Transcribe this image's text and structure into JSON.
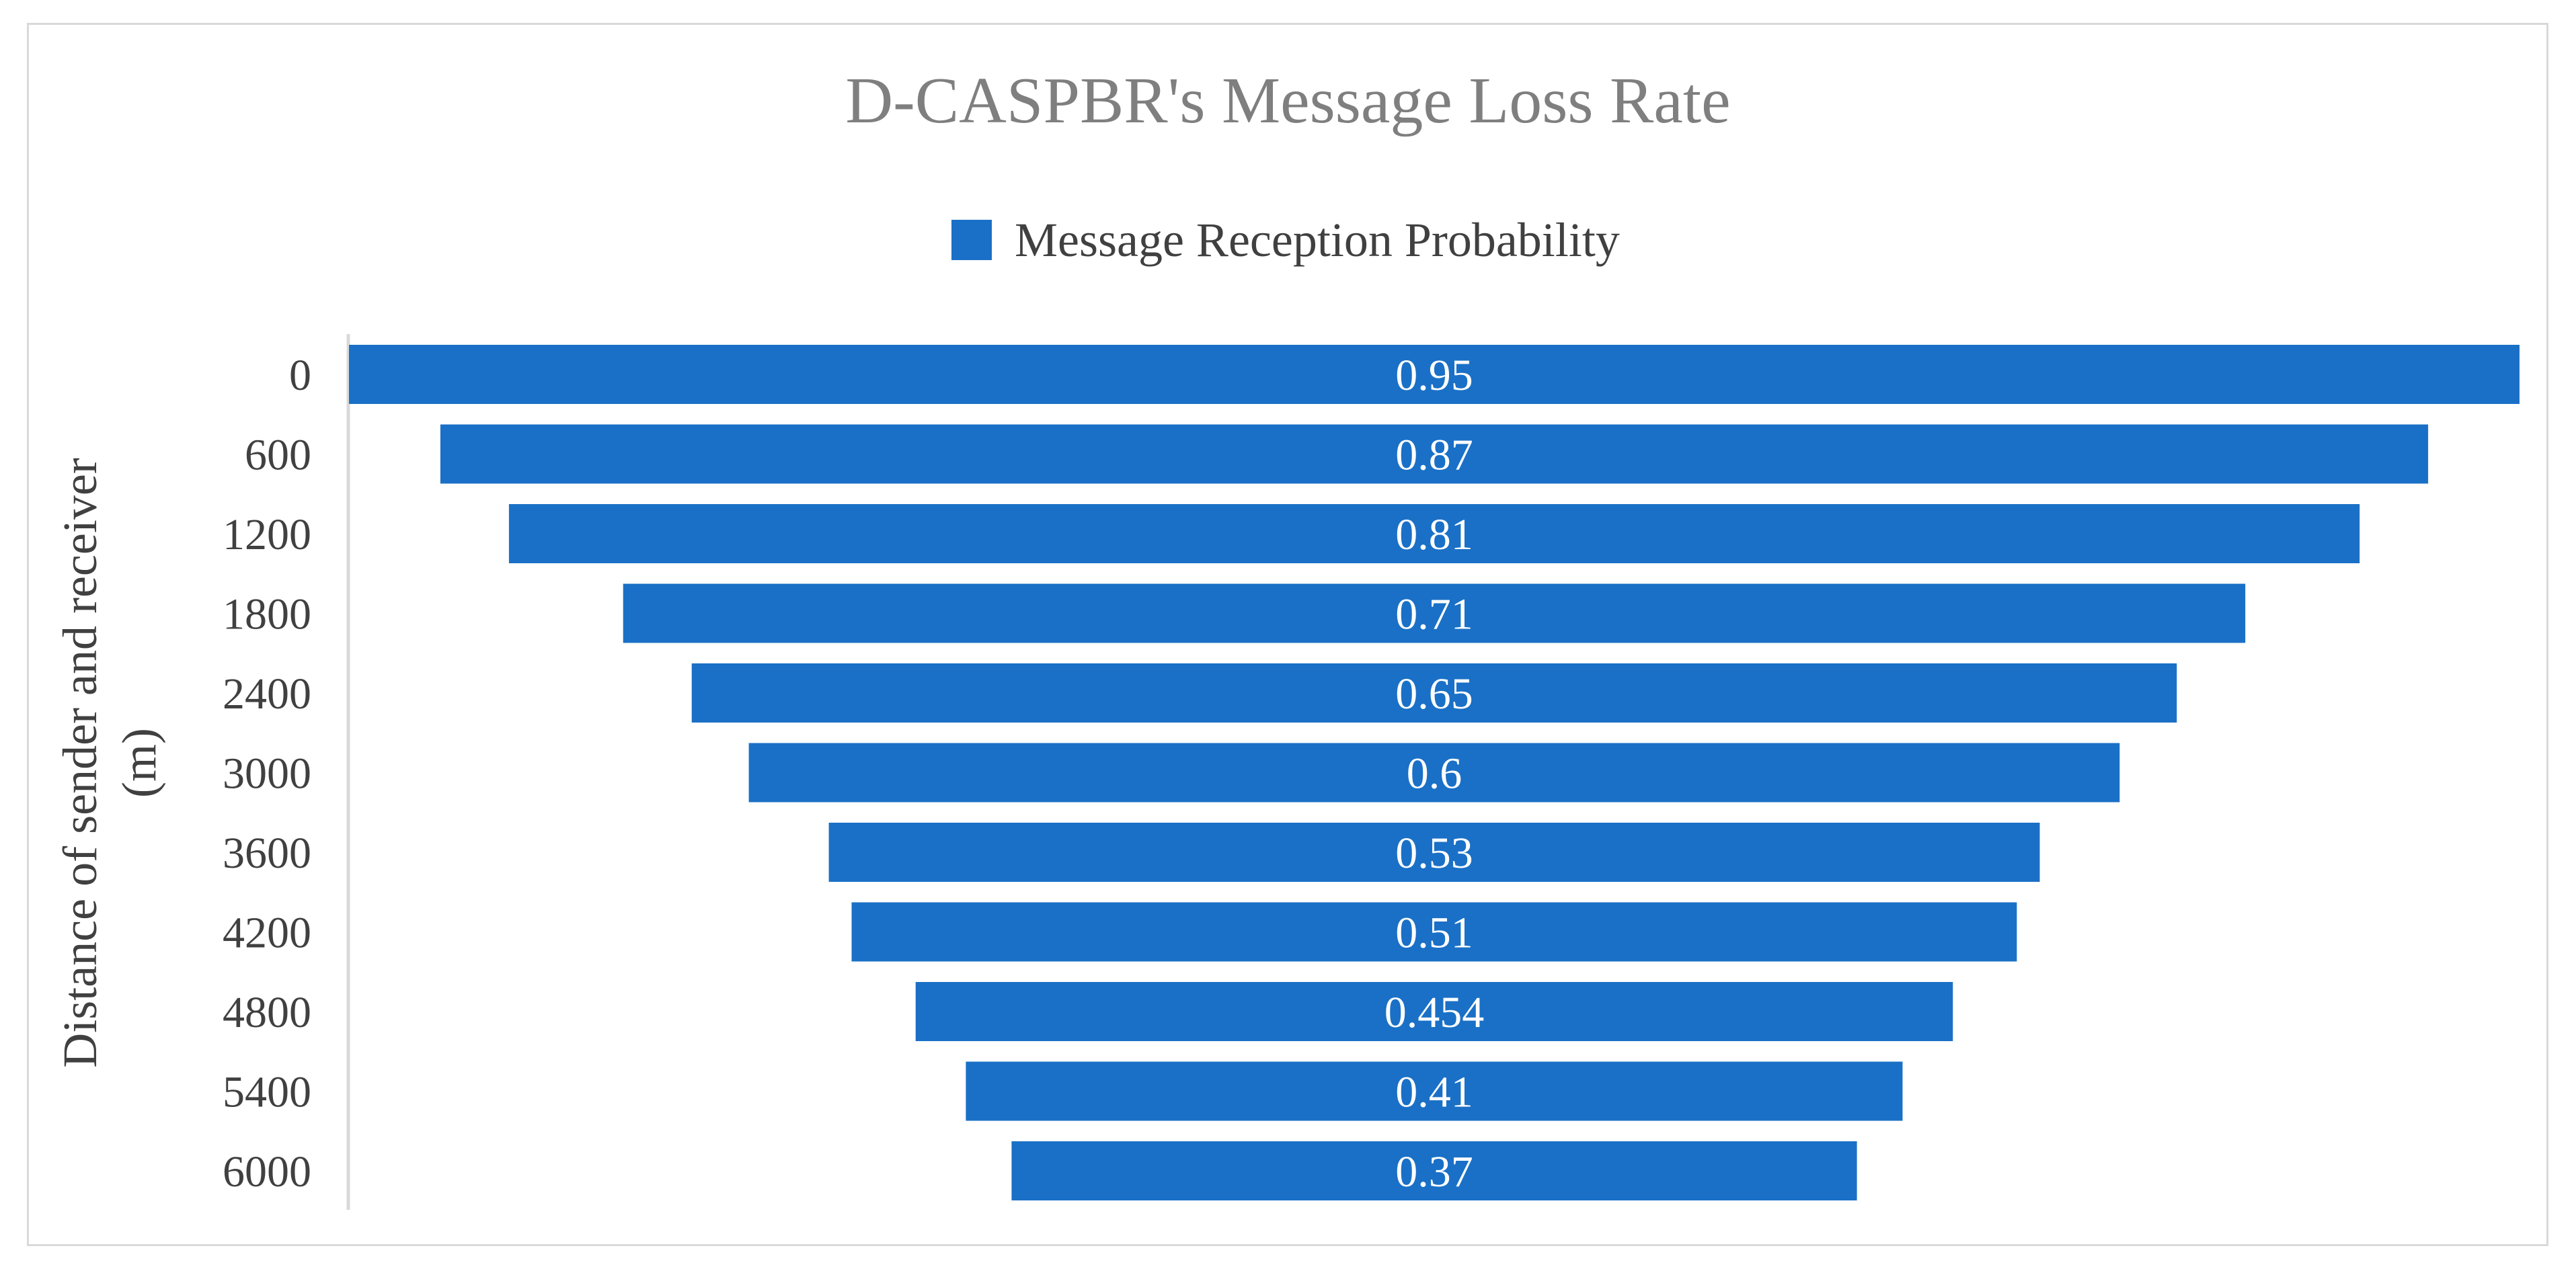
{
  "chart_data": {
    "type": "bar",
    "orientation": "horizontal",
    "style": "funnel (bars centered)",
    "title": "D-CASPBR's Message Loss Rate",
    "ylabel_lines": [
      "Distance of sender and receiver",
      "(m)"
    ],
    "xlabel": "",
    "categories": [
      "0",
      "600",
      "1200",
      "1800",
      "2400",
      "3000",
      "3600",
      "4200",
      "4800",
      "5400",
      "6000"
    ],
    "series": [
      {
        "name": "Message Reception Probability",
        "color": "#1a70c6",
        "values": [
          0.95,
          0.87,
          0.81,
          0.71,
          0.65,
          0.6,
          0.53,
          0.51,
          0.454,
          0.41,
          0.37
        ],
        "labels": [
          "0.95",
          "0.87",
          "0.81",
          "0.71",
          "0.65",
          "0.6",
          "0.53",
          "0.51",
          "0.454",
          "0.41",
          "0.37"
        ]
      }
    ],
    "xlim": [
      0,
      0.95
    ],
    "legend_position": "top",
    "grid": false
  }
}
